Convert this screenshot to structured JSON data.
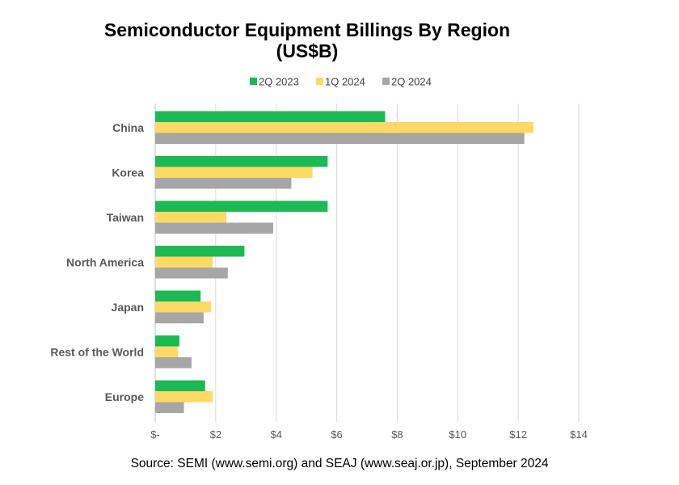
{
  "chart_data": {
    "type": "bar",
    "orientation": "horizontal",
    "title": "Semiconductor Equipment Billings By Region",
    "subtitle": "(US$B)",
    "categories": [
      "China",
      "Korea",
      "Taiwan",
      "North America",
      "Japan",
      "Rest of the World",
      "Europe"
    ],
    "series": [
      {
        "name": "2Q 2023",
        "color": "#1db954",
        "values": [
          7.6,
          5.7,
          5.7,
          2.95,
          1.5,
          0.8,
          1.65
        ]
      },
      {
        "name": "1Q 2024",
        "color": "#ffd966",
        "values": [
          12.5,
          5.2,
          2.35,
          1.9,
          1.85,
          0.75,
          1.9
        ]
      },
      {
        "name": "2Q 2024",
        "color": "#a6a6a6",
        "values": [
          12.2,
          4.5,
          3.9,
          2.4,
          1.6,
          1.2,
          0.95
        ]
      }
    ],
    "x_ticks": [
      "$-",
      "$2",
      "$4",
      "$6",
      "$8",
      "$10",
      "$12",
      "$14"
    ],
    "xlim": [
      0,
      14
    ],
    "grid": true,
    "legend": "top"
  },
  "source_note": "Source: SEMI (www.semi.org) and SEAJ (www.seaj.or.jp), September 2024"
}
